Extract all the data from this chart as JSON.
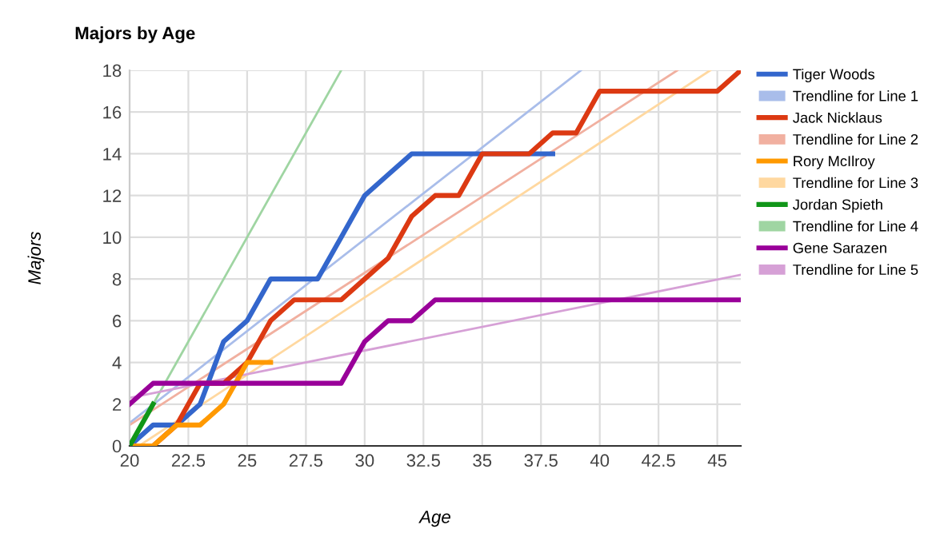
{
  "chart_data": {
    "type": "line",
    "title": "Majors by Age",
    "xlabel": "Age",
    "ylabel": "Majors",
    "x": [
      20,
      21,
      22,
      23,
      24,
      25,
      26,
      27,
      28,
      29,
      30,
      31,
      32,
      33,
      34,
      35,
      36,
      37,
      38,
      39,
      40,
      41,
      42,
      43,
      44,
      45,
      46
    ],
    "series": [
      {
        "name": "Tiger Woods",
        "color": "#3366cc",
        "values": [
          0,
          1,
          1,
          2,
          5,
          6,
          8,
          8,
          8,
          10,
          12,
          13,
          14,
          14,
          14,
          14,
          14,
          14,
          14,
          null,
          null,
          null,
          null,
          null,
          null,
          null,
          null
        ]
      },
      {
        "name": "Trendline for Line 1",
        "color": "#a9bdea",
        "x": [
          20,
          39.2
        ],
        "values": [
          1.1,
          18
        ]
      },
      {
        "name": "Jack Nicklaus",
        "color": "#dc3912",
        "values": [
          0,
          0,
          1,
          3,
          3,
          4,
          6,
          7,
          7,
          7,
          8,
          9,
          11,
          12,
          12,
          14,
          14,
          14,
          15,
          15,
          17,
          17,
          17,
          17,
          17,
          17,
          18
        ]
      },
      {
        "name": "Trendline for Line 2",
        "color": "#f1b0a0",
        "x": [
          20,
          43.3
        ],
        "values": [
          1.0,
          18
        ]
      },
      {
        "name": "Rory McIlroy",
        "color": "#ff9900",
        "values": [
          0,
          0,
          1,
          1,
          2,
          4,
          4,
          null,
          null,
          null,
          null,
          null,
          null,
          null,
          null,
          null,
          null,
          null,
          null,
          null,
          null,
          null,
          null,
          null,
          null,
          null,
          null
        ]
      },
      {
        "name": "Trendline for Line 3",
        "color": "#ffd8a0",
        "x": [
          20.4,
          44.7
        ],
        "values": [
          0,
          18
        ]
      },
      {
        "name": "Jordan Spieth",
        "color": "#109618",
        "values": [
          0,
          2,
          null,
          null,
          null,
          null,
          null,
          null,
          null,
          null,
          null,
          null,
          null,
          null,
          null,
          null,
          null,
          null,
          null,
          null,
          null,
          null,
          null,
          null,
          null,
          null,
          null
        ]
      },
      {
        "name": "Trendline for Line 4",
        "color": "#9fd5a2",
        "x": [
          20,
          29
        ],
        "values": [
          0,
          18
        ]
      },
      {
        "name": "Gene Sarazen",
        "color": "#990099",
        "values": [
          2,
          3,
          3,
          3,
          3,
          3,
          3,
          3,
          3,
          3,
          5,
          6,
          6,
          7,
          7,
          7,
          7,
          7,
          7,
          7,
          7,
          7,
          7,
          7,
          7,
          7,
          7
        ]
      },
      {
        "name": "Trendline for Line 5",
        "color": "#d6a0d6",
        "x": [
          20,
          46
        ],
        "values": [
          2.3,
          8.2
        ]
      }
    ],
    "xlim": [
      20,
      46
    ],
    "ylim": [
      0,
      18
    ],
    "xticks": [
      20,
      {
        "value": 22.5,
        "label": "22.5"
      },
      25,
      {
        "value": 27.5,
        "label": "27.5"
      },
      30,
      {
        "value": 32.5,
        "label": "32.5"
      },
      35,
      {
        "value": 37.5,
        "label": "37.5"
      },
      40,
      {
        "value": 42.5,
        "label": "42.5"
      },
      45
    ],
    "yticks": [
      0,
      2,
      4,
      6,
      8,
      10,
      12,
      14,
      16,
      18
    ],
    "grid": true,
    "legend": "right",
    "marker": "none",
    "line_style": "solid"
  }
}
